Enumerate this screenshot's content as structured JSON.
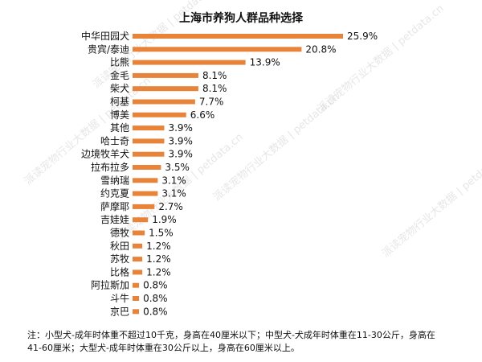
{
  "chart_data": {
    "type": "bar",
    "orientation": "horizontal",
    "title": "上海市养狗人群品种选择",
    "categories": [
      "中华田园犬",
      "贵宾/泰迪",
      "比熊",
      "金毛",
      "柴犬",
      "柯基",
      "博美",
      "其他",
      "哈士奇",
      "边境牧羊犬",
      "拉布拉多",
      "雪纳瑞",
      "约克夏",
      "萨摩耶",
      "吉娃娃",
      "德牧",
      "秋田",
      "苏牧",
      "比格",
      "阿拉斯加",
      "斗牛",
      "京巴"
    ],
    "values": [
      25.9,
      20.8,
      13.9,
      8.1,
      8.1,
      7.7,
      6.6,
      3.9,
      3.9,
      3.9,
      3.5,
      3.1,
      3.1,
      2.7,
      1.9,
      1.5,
      1.2,
      1.2,
      1.2,
      0.8,
      0.8,
      0.8
    ],
    "value_labels": [
      "25.9%",
      "20.8%",
      "13.9%",
      "8.1%",
      "8.1%",
      "7.7%",
      "6.6%",
      "3.9%",
      "3.9%",
      "3.9%",
      "3.5%",
      "3.1%",
      "3.1%",
      "2.7%",
      "1.9%",
      "1.5%",
      "1.2%",
      "1.2%",
      "1.2%",
      "0.8%",
      "0.8%",
      "0.8%"
    ],
    "unit": "%",
    "bar_color": "#E8843A",
    "xlim": [
      0,
      30
    ],
    "grid": false,
    "legend": "none"
  },
  "footnote": "注：小型犬-成年时体重不超过10千克，身高在40厘米以下；中型犬-犬成年时体重在11-30公斤，身高在41-60厘米；大型犬-成年时体重在30公斤以上，身高在60厘米以上。",
  "watermark_text": "派读宠物行业大数据 | petdata.cn"
}
